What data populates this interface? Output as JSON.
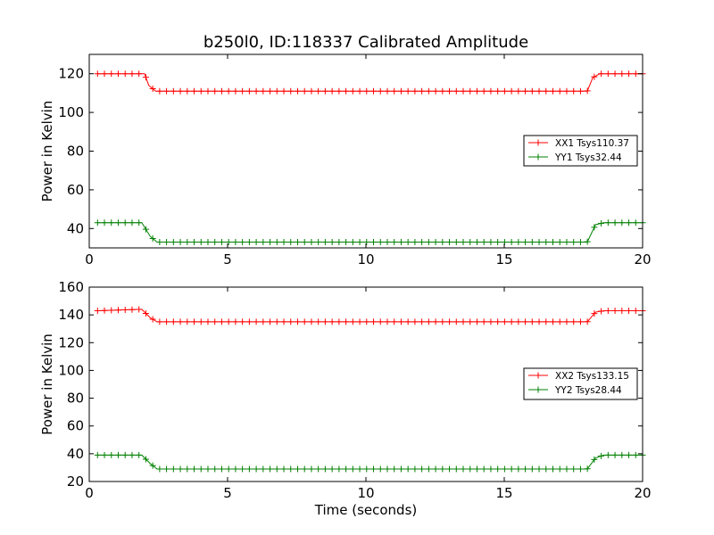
{
  "figure": {
    "title": "b250l0, ID:118337 Calibrated Amplitude"
  },
  "chart_data": [
    {
      "type": "line",
      "title": "b250l0, ID:118337 Calibrated Amplitude",
      "xlabel": "",
      "ylabel": "Power in Kelvin",
      "xlim": [
        0,
        20
      ],
      "ylim": [
        30,
        130
      ],
      "xticks": [
        0,
        5,
        10,
        15,
        20
      ],
      "xtick_labels": [
        "0",
        "5",
        "10",
        "15",
        "20"
      ],
      "yticks": [
        40,
        60,
        80,
        100,
        120
      ],
      "ytick_labels": [
        "40",
        "60",
        "80",
        "100",
        "120"
      ],
      "grid": false,
      "legend_position": "center-right",
      "series": [
        {
          "name": "XX1 Tsys110.37",
          "color": "#ff0000",
          "marker": "plus",
          "points": [
            [
              0.3,
              120
            ],
            [
              2.0,
              120
            ],
            [
              2.15,
              114
            ],
            [
              2.4,
              111
            ],
            [
              18.0,
              111
            ],
            [
              18.2,
              118
            ],
            [
              18.45,
              120
            ],
            [
              20.0,
              120
            ]
          ]
        },
        {
          "name": "YY1 Tsys32.44",
          "color": "#008000",
          "marker": "plus",
          "points": [
            [
              0.3,
              43
            ],
            [
              1.9,
              43
            ],
            [
              2.2,
              36
            ],
            [
              2.45,
              33
            ],
            [
              18.0,
              33
            ],
            [
              18.3,
              42
            ],
            [
              18.6,
              43
            ],
            [
              20.0,
              43
            ]
          ]
        }
      ]
    },
    {
      "type": "line",
      "title": "",
      "xlabel": "Time (seconds)",
      "ylabel": "Power in Kelvin",
      "xlim": [
        0,
        20
      ],
      "ylim": [
        20,
        160
      ],
      "xticks": [
        0,
        5,
        10,
        15,
        20
      ],
      "xtick_labels": [
        "0",
        "5",
        "10",
        "15",
        "20"
      ],
      "yticks": [
        20,
        40,
        60,
        80,
        100,
        120,
        140,
        160
      ],
      "ytick_labels": [
        "20",
        "40",
        "60",
        "80",
        "100",
        "120",
        "140",
        "160"
      ],
      "grid": false,
      "legend_position": "center-right",
      "series": [
        {
          "name": "XX2 Tsys133.15",
          "color": "#ff0000",
          "marker": "plus",
          "points": [
            [
              0.3,
              143
            ],
            [
              1.9,
              144
            ],
            [
              2.2,
              138
            ],
            [
              2.45,
              135
            ],
            [
              18.0,
              135
            ],
            [
              18.3,
              142
            ],
            [
              18.6,
              143
            ],
            [
              20.0,
              143
            ]
          ]
        },
        {
          "name": "YY2 Tsys28.44",
          "color": "#008000",
          "marker": "plus",
          "points": [
            [
              0.3,
              39
            ],
            [
              1.9,
              39
            ],
            [
              2.2,
              33
            ],
            [
              2.45,
              29
            ],
            [
              18.0,
              29
            ],
            [
              18.3,
              37
            ],
            [
              18.6,
              39
            ],
            [
              20.0,
              39
            ]
          ]
        }
      ]
    }
  ]
}
